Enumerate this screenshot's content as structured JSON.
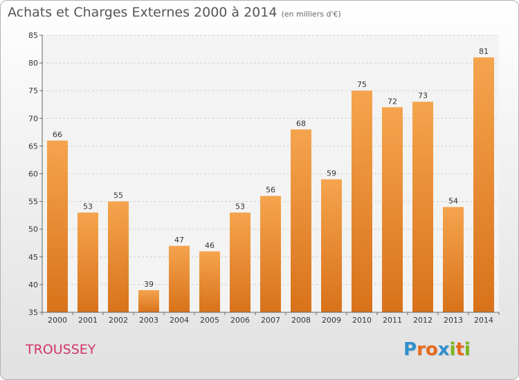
{
  "header": {
    "title": "Achats et Charges Externes 2000 à 2014",
    "subtitle": "(en milliers d'€)"
  },
  "footer": {
    "commune": "TROUSSEY",
    "logo_text": "Proxiti",
    "logo_letters": [
      {
        "ch": "P",
        "color": "#2f8fce"
      },
      {
        "ch": "r",
        "color": "#e86a1c"
      },
      {
        "ch": "o",
        "color": "#e86a1c"
      },
      {
        "ch": "x",
        "color": "#2f8fce"
      },
      {
        "ch": "i",
        "color": "#7cb51f"
      },
      {
        "ch": "t",
        "color": "#e86a1c"
      },
      {
        "ch": "i",
        "color": "#7cb51f"
      }
    ]
  },
  "chart_data": {
    "type": "bar",
    "categories": [
      "2000",
      "2001",
      "2002",
      "2003",
      "2004",
      "2005",
      "2006",
      "2007",
      "2008",
      "2009",
      "2010",
      "2011",
      "2012",
      "2013",
      "2014"
    ],
    "values": [
      66,
      53,
      55,
      39,
      47,
      46,
      53,
      56,
      68,
      59,
      75,
      72,
      73,
      54,
      81
    ],
    "data_labels": [
      "66",
      "53",
      "55",
      "39",
      "47",
      "46",
      "53",
      "56",
      "68",
      "59",
      "75",
      "72",
      "73",
      "54",
      "81"
    ],
    "ylim": [
      35,
      85
    ],
    "yticks": [
      35,
      40,
      45,
      50,
      55,
      60,
      65,
      70,
      75,
      80,
      85
    ],
    "ytick_labels": [
      "35",
      "40",
      "45",
      "50",
      "55",
      "60",
      "65",
      "70",
      "75",
      "80",
      "85"
    ],
    "grid": true,
    "bar_color_light": "#f5a44e",
    "bar_color_dark": "#d8721a"
  }
}
